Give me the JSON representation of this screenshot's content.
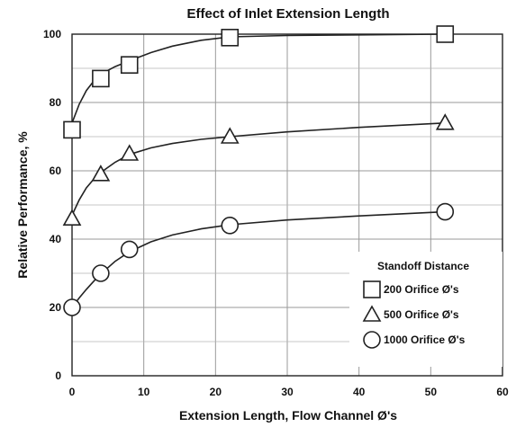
{
  "chart_data": {
    "type": "scatter",
    "title": "Effect of Inlet Extension Length",
    "xlabel": "Extension Length, Flow Channel Ø's",
    "ylabel": "Relative Performance, %",
    "xlim": [
      0,
      60
    ],
    "ylim": [
      0,
      100
    ],
    "x_ticks": [
      0,
      10,
      20,
      30,
      40,
      50,
      60
    ],
    "y_ticks": [
      0,
      20,
      40,
      60,
      80,
      100
    ],
    "grid": true,
    "legend_title": "Standoff Distance",
    "legend_position": "lower-right",
    "series": [
      {
        "name": "200 Orifice Ø's",
        "marker": "square",
        "x": [
          0,
          4,
          8,
          22,
          52
        ],
        "y": [
          72,
          87,
          91,
          99,
          100
        ],
        "curve_x": [
          0,
          1,
          2,
          3,
          4,
          6,
          8,
          11,
          14,
          18,
          22,
          30,
          40,
          52
        ],
        "curve_y": [
          74,
          79.5,
          83.5,
          86.2,
          88.3,
          90.5,
          92.2,
          94.6,
          96.5,
          98.2,
          99.2,
          99.6,
          99.8,
          100
        ]
      },
      {
        "name": "500 Orifice Ø's",
        "marker": "triangle",
        "x": [
          0,
          4,
          8,
          22,
          52
        ],
        "y": [
          46,
          59,
          65,
          70,
          74
        ],
        "curve_x": [
          0,
          1,
          2,
          3,
          4,
          6,
          8,
          11,
          14,
          18,
          22,
          30,
          40,
          52
        ],
        "curve_y": [
          47,
          51.5,
          55,
          57.5,
          59.5,
          62.5,
          64.8,
          66.7,
          68,
          69.2,
          70,
          71.4,
          72.7,
          74
        ]
      },
      {
        "name": "1000 Orifice Ø's",
        "marker": "circle",
        "x": [
          0,
          4,
          8,
          22,
          52
        ],
        "y": [
          20,
          30,
          37,
          44,
          48
        ],
        "curve_x": [
          0,
          1,
          2,
          3,
          4,
          6,
          8,
          11,
          14,
          18,
          22,
          30,
          40,
          52
        ],
        "curve_y": [
          20,
          22.8,
          25.3,
          27.6,
          29.8,
          33.5,
          36.3,
          39.2,
          41.2,
          43,
          44.2,
          45.6,
          46.8,
          48
        ]
      }
    ]
  }
}
